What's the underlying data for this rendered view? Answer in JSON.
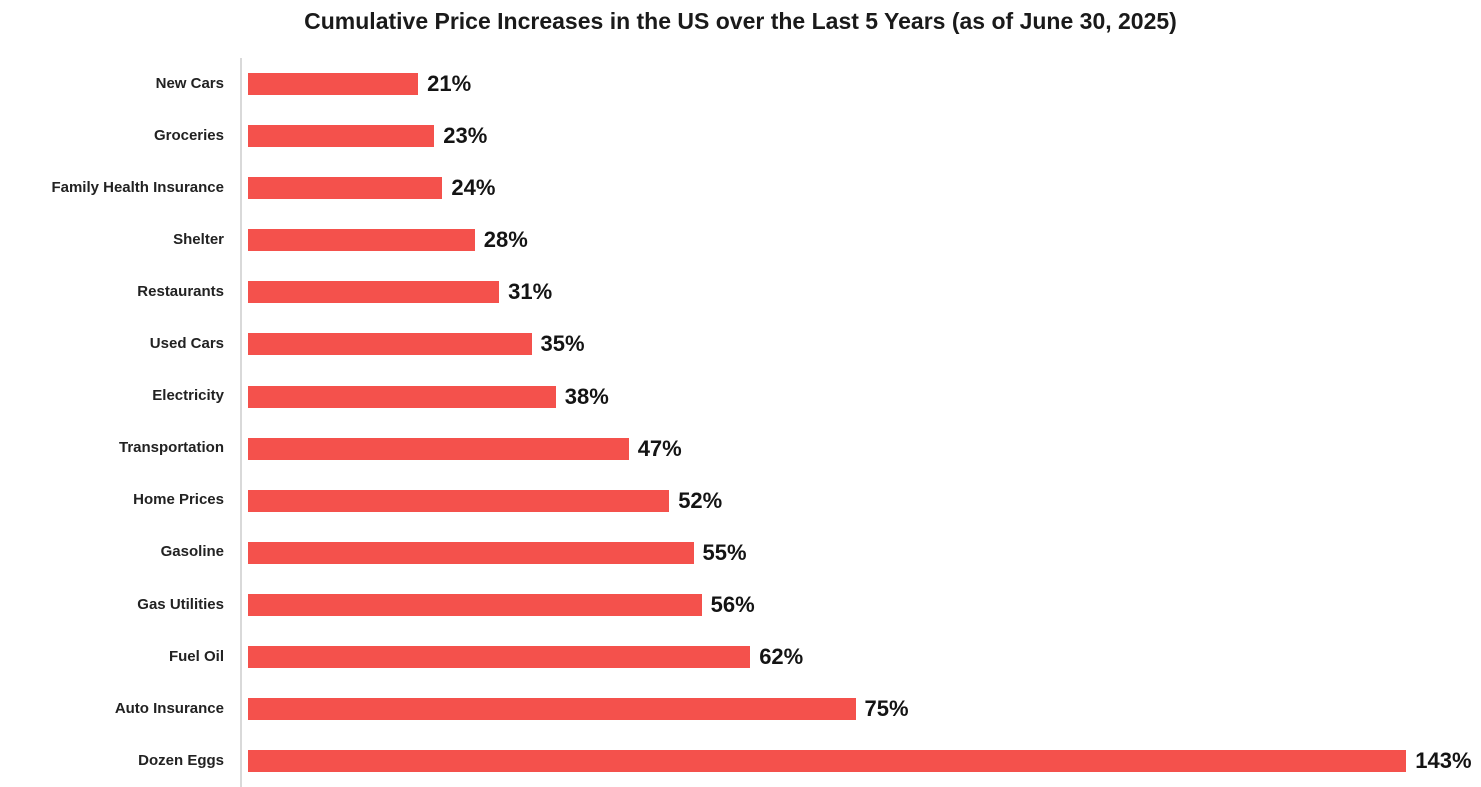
{
  "chart_data": {
    "type": "bar",
    "orientation": "horizontal",
    "title": "Cumulative Price Increases in the US over the Last 5 Years (as of June 30, 2025)",
    "categories": [
      "New Cars",
      "Groceries",
      "Family Health Insurance",
      "Shelter",
      "Restaurants",
      "Used Cars",
      "Electricity",
      "Transportation",
      "Home Prices",
      "Gasoline",
      "Gas Utilities",
      "Fuel Oil",
      "Auto Insurance",
      "Dozen Eggs"
    ],
    "values": [
      21,
      23,
      24,
      28,
      31,
      35,
      38,
      47,
      52,
      55,
      56,
      62,
      75,
      143
    ],
    "value_labels": [
      "21%",
      "23%",
      "24%",
      "28%",
      "31%",
      "35%",
      "38%",
      "47%",
      "52%",
      "55%",
      "56%",
      "62%",
      "75%",
      "143%"
    ],
    "unit": "%",
    "xlim": [
      0,
      150
    ],
    "sort_order": "ascending",
    "grid": false,
    "legend": false,
    "colors": {
      "bar": "#f4514c",
      "title_text": "#1a1a1a",
      "category_text": "#222222",
      "value_text": "#141414",
      "axis_line": "#d9d9d9",
      "background": "#ffffff"
    }
  }
}
